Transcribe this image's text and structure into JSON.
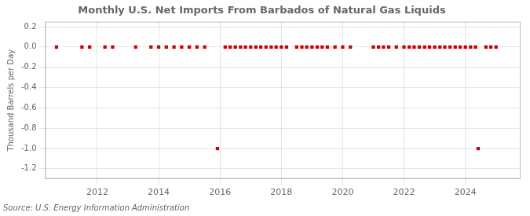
{
  "chart_data": {
    "type": "scatter",
    "title": "Monthly U.S. Net Imports From Barbados of Natural Gas Liquids",
    "ylabel": "Thousand Barrels per Day",
    "annotation": "Source: U.S. Energy Information Administration",
    "x": [
      2010.67,
      2011.5,
      2011.75,
      2012.25,
      2012.5,
      2013.25,
      2013.75,
      2014.0,
      2014.25,
      2014.5,
      2014.75,
      2015.0,
      2015.25,
      2015.5,
      2015.917,
      2016.17,
      2016.33,
      2016.5,
      2016.67,
      2016.83,
      2017.0,
      2017.17,
      2017.33,
      2017.5,
      2017.67,
      2017.83,
      2018.0,
      2018.17,
      2018.5,
      2018.67,
      2018.83,
      2019.0,
      2019.17,
      2019.33,
      2019.5,
      2019.75,
      2020.0,
      2020.25,
      2021.0,
      2021.17,
      2021.33,
      2021.5,
      2021.75,
      2022.0,
      2022.17,
      2022.33,
      2022.5,
      2022.67,
      2022.83,
      2023.0,
      2023.17,
      2023.33,
      2023.5,
      2023.67,
      2023.83,
      2024.0,
      2024.17,
      2024.33,
      2024.417,
      2024.67,
      2024.83,
      2025.0
    ],
    "values": [
      0.0,
      0.0,
      0.0,
      0.0,
      0.0,
      0.0,
      0.0,
      0.0,
      0.0,
      0.0,
      0.0,
      0.0,
      0.0,
      0.0,
      -1.0,
      0.0,
      0.0,
      0.0,
      0.0,
      0.0,
      0.0,
      0.0,
      0.0,
      0.0,
      0.0,
      0.0,
      0.0,
      0.0,
      0.0,
      0.0,
      0.0,
      0.0,
      0.0,
      0.0,
      0.0,
      0.0,
      0.0,
      0.0,
      0.0,
      0.0,
      0.0,
      0.0,
      0.0,
      0.0,
      0.0,
      0.0,
      0.0,
      0.0,
      0.0,
      0.0,
      0.0,
      0.0,
      0.0,
      0.0,
      0.0,
      0.0,
      0.0,
      0.0,
      -1.0,
      0.0,
      0.0,
      0.0
    ],
    "color": "#cc0000",
    "marker": "square",
    "xlim": [
      2010.3,
      2025.8
    ],
    "xticks": [
      2012,
      2014,
      2016,
      2018,
      2020,
      2022,
      2024
    ],
    "ylim": [
      -1.3,
      0.25
    ],
    "yticks": [
      0.2,
      {
        "value": 0.0,
        "label": "0.0"
      },
      -0.2,
      -0.4,
      -0.6,
      -0.8,
      {
        "value": -1.0,
        "label": "-1.0"
      },
      -1.2
    ],
    "grid": true
  }
}
